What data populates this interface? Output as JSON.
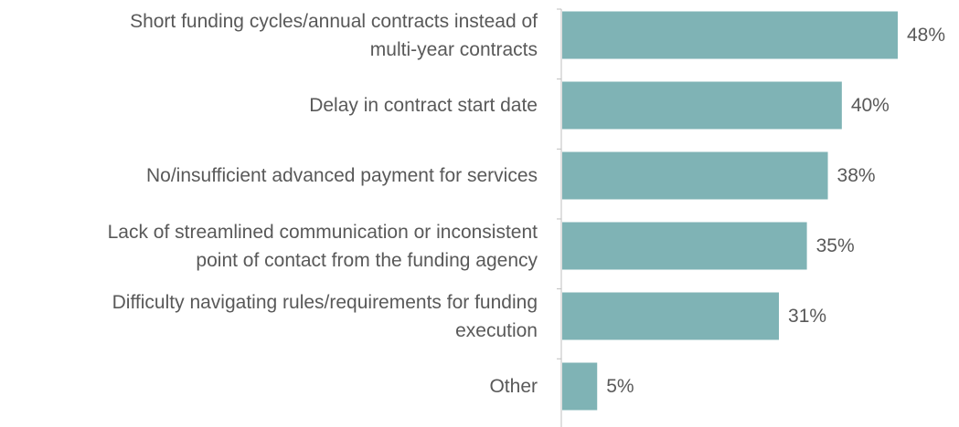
{
  "chart_data": {
    "type": "bar",
    "orientation": "horizontal",
    "categories": [
      "Short funding cycles/annual contracts instead of\nmulti-year contracts",
      "Delay in contract start date",
      "No/insufficient advanced payment for services",
      "Lack of streamlined communication or inconsistent\npoint of contact from the funding agency",
      "Difficulty navigating rules/requirements for funding\nexecution",
      "Other"
    ],
    "values": [
      48,
      40,
      38,
      35,
      31,
      5
    ],
    "value_labels": [
      "48%",
      "40%",
      "38%",
      "35%",
      "31%",
      "5%"
    ],
    "color": "#7fb3b5"
  }
}
